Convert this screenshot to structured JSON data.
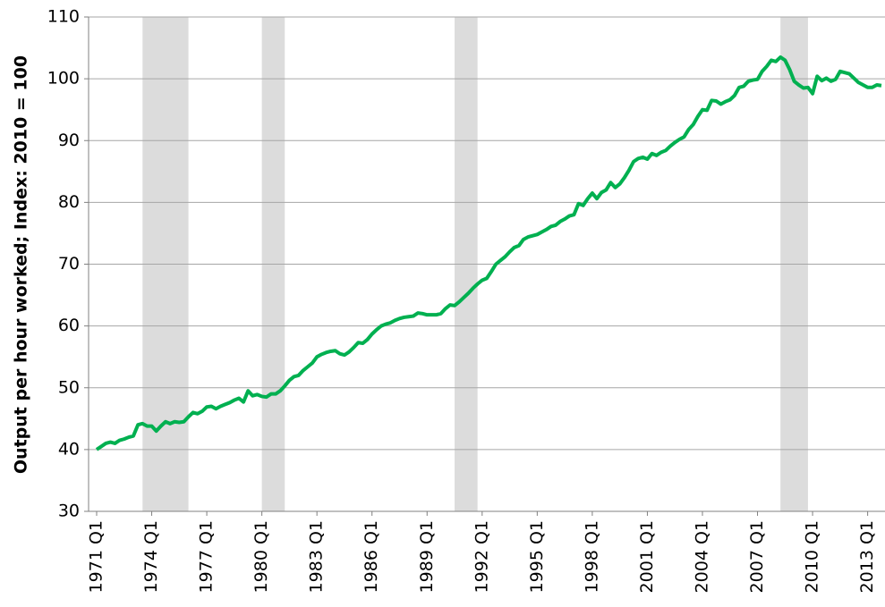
{
  "chart_data": {
    "type": "line",
    "y_label": "Output per hour worked; Index: 2010 = 100",
    "categories": [
      "1971 Q1",
      null,
      null,
      null,
      null,
      null,
      null,
      null,
      null,
      null,
      null,
      null,
      "1974 Q1",
      null,
      null,
      null,
      null,
      null,
      null,
      null,
      null,
      null,
      null,
      null,
      "1977 Q1",
      null,
      null,
      null,
      null,
      null,
      null,
      null,
      null,
      null,
      null,
      null,
      "1980 Q1",
      null,
      null,
      null,
      null,
      null,
      null,
      null,
      null,
      null,
      null,
      null,
      "1983 Q1",
      null,
      null,
      null,
      null,
      null,
      null,
      null,
      null,
      null,
      null,
      null,
      "1986 Q1",
      null,
      null,
      null,
      null,
      null,
      null,
      null,
      null,
      null,
      null,
      null,
      "1989 Q1",
      null,
      null,
      null,
      null,
      null,
      null,
      null,
      null,
      null,
      null,
      null,
      "1992 Q1",
      null,
      null,
      null,
      null,
      null,
      null,
      null,
      null,
      null,
      null,
      null,
      "1995 Q1",
      null,
      null,
      null,
      null,
      null,
      null,
      null,
      null,
      null,
      null,
      null,
      "1998 Q1",
      null,
      null,
      null,
      null,
      null,
      null,
      null,
      null,
      null,
      null,
      null,
      "2001 Q1",
      null,
      null,
      null,
      null,
      null,
      null,
      null,
      null,
      null,
      null,
      null,
      "2004 Q1",
      null,
      null,
      null,
      null,
      null,
      null,
      null,
      null,
      null,
      null,
      null,
      "2007 Q1",
      null,
      null,
      null,
      null,
      null,
      null,
      null,
      null,
      null,
      null,
      null,
      "2010 Q1",
      null,
      null,
      null,
      null,
      null,
      null,
      null,
      null,
      null,
      null,
      null,
      "2013 Q1",
      null,
      null,
      null
    ],
    "values": [
      40.0,
      40.5,
      41.0,
      41.2,
      41.0,
      41.5,
      41.7,
      42.0,
      42.2,
      44.0,
      44.2,
      43.8,
      43.8,
      43.0,
      43.8,
      44.5,
      44.2,
      44.5,
      44.4,
      44.5,
      45.3,
      46.0,
      45.8,
      46.2,
      46.9,
      47.0,
      46.6,
      47.0,
      47.3,
      47.6,
      48.0,
      48.3,
      47.7,
      49.5,
      48.7,
      48.9,
      48.6,
      48.5,
      49.0,
      49.0,
      49.5,
      50.3,
      51.2,
      51.8,
      52.0,
      52.8,
      53.4,
      54.0,
      55.0,
      55.4,
      55.7,
      55.9,
      56.0,
      55.5,
      55.3,
      55.8,
      56.5,
      57.3,
      57.2,
      57.8,
      58.7,
      59.4,
      60.0,
      60.3,
      60.5,
      60.9,
      61.2,
      61.4,
      61.5,
      61.6,
      62.1,
      62.0,
      61.8,
      61.8,
      61.8,
      62.0,
      62.8,
      63.4,
      63.3,
      63.9,
      64.6,
      65.3,
      66.1,
      66.8,
      67.4,
      67.7,
      68.8,
      70.0,
      70.6,
      71.2,
      72.0,
      72.7,
      73.0,
      74.0,
      74.4,
      74.6,
      74.8,
      75.2,
      75.6,
      76.1,
      76.3,
      76.9,
      77.3,
      77.8,
      78.0,
      79.8,
      79.5,
      80.6,
      81.5,
      80.6,
      81.6,
      82.0,
      83.2,
      82.4,
      83.0,
      84.0,
      85.2,
      86.6,
      87.1,
      87.3,
      87.0,
      87.9,
      87.6,
      88.1,
      88.4,
      89.1,
      89.7,
      90.2,
      90.6,
      91.8,
      92.6,
      93.9,
      95.0,
      94.9,
      96.5,
      96.4,
      95.9,
      96.3,
      96.6,
      97.3,
      98.6,
      98.8,
      99.6,
      99.8,
      99.9,
      101.2,
      102.0,
      103.0,
      102.8,
      103.5,
      103.0,
      101.5,
      99.6,
      99.0,
      98.5,
      98.6,
      97.6,
      100.4,
      99.7,
      100.1,
      99.6,
      99.9,
      101.2,
      101.0,
      100.8,
      100.1,
      99.4,
      99.0,
      98.6,
      98.6,
      99.0,
      98.9
    ],
    "color": "#00b050",
    "shaded_periods": [
      {
        "start": 10,
        "end": 20
      },
      {
        "start": 36,
        "end": 41
      },
      {
        "start": 78,
        "end": 83
      },
      {
        "start": 149,
        "end": 155
      }
    ],
    "shade_color": "#dcdcdc",
    "ylim": [
      30,
      110
    ],
    "yticks": [
      30,
      40,
      50,
      60,
      70,
      80,
      90,
      100,
      110
    ],
    "grid": true
  }
}
